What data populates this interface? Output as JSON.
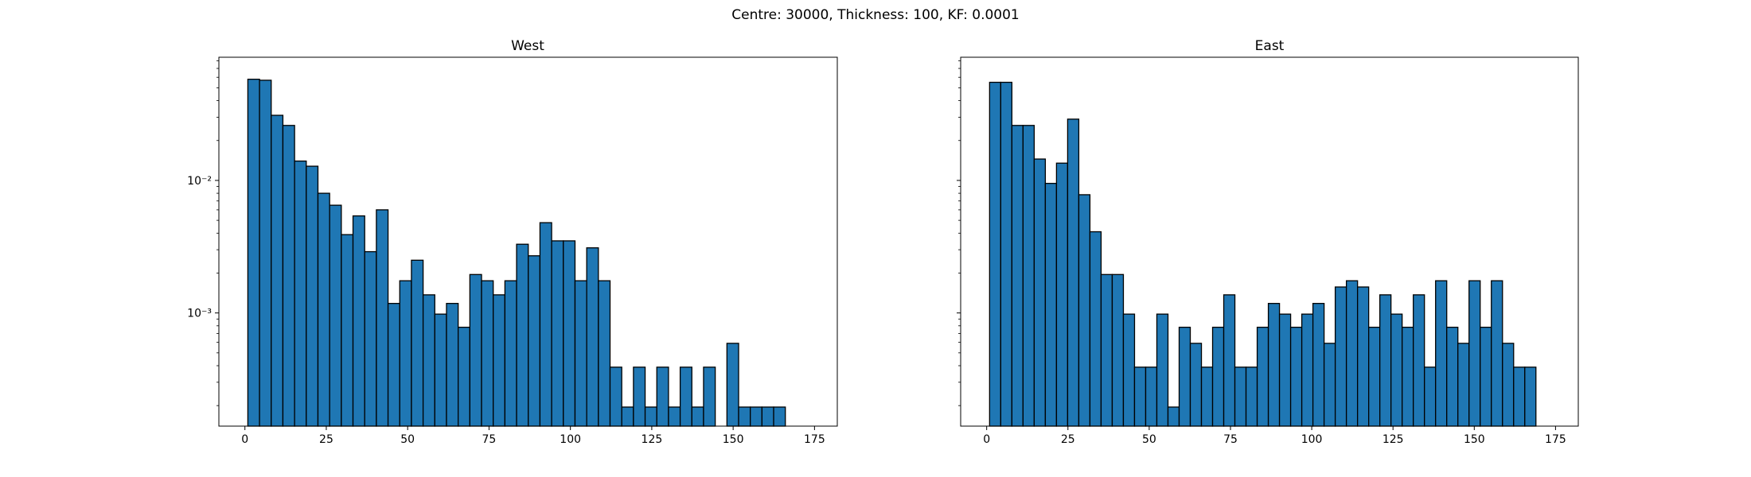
{
  "figure": {
    "suptitle": "Centre: 30000, Thickness: 100, KF: 0.0001"
  },
  "colors": {
    "bar_fill": "#1f77b4",
    "bar_edge": "#000000"
  },
  "chart_data": [
    {
      "type": "bar",
      "title": "West",
      "xlabel": "",
      "ylabel": "",
      "yscale": "log",
      "xlim": [
        -8,
        182
      ],
      "ylim": [
        0.00014,
        0.085
      ],
      "xticks": [
        0,
        25,
        50,
        75,
        100,
        125,
        150,
        175
      ],
      "yticks": [
        0.001,
        0.01
      ],
      "ytick_labels": [
        "10⁻³",
        "10⁻²"
      ],
      "bin_start": 0.9,
      "bin_width": 3.59,
      "values": [
        0.058,
        0.057,
        0.031,
        0.026,
        0.014,
        0.0128,
        0.008,
        0.0065,
        0.0039,
        0.0054,
        0.0029,
        0.006,
        0.00118,
        0.00175,
        0.0025,
        0.00137,
        0.00098,
        0.00118,
        0.00078,
        0.00195,
        0.00175,
        0.00137,
        0.00175,
        0.0033,
        0.0027,
        0.0048,
        0.0035,
        0.0035,
        0.00175,
        0.0031,
        0.00175,
        0.00039,
        0.000195,
        0.00039,
        0.000195,
        0.00039,
        0.000195,
        0.00039,
        0.000195,
        0.00039,
        0,
        0.00059,
        0.000195,
        0.000195,
        0.000195,
        0.000195
      ]
    },
    {
      "type": "bar",
      "title": "East",
      "xlabel": "",
      "ylabel": "",
      "yscale": "log",
      "xlim": [
        -8,
        182
      ],
      "ylim": [
        0.00014,
        0.085
      ],
      "xticks": [
        0,
        25,
        50,
        75,
        100,
        125,
        150,
        175
      ],
      "yticks": [
        0.001,
        0.01
      ],
      "ytick_labels": [
        "",
        ""
      ],
      "bin_start": 0.9,
      "bin_width": 3.43,
      "values": [
        0.055,
        0.055,
        0.026,
        0.026,
        0.0145,
        0.0095,
        0.0135,
        0.029,
        0.0078,
        0.0041,
        0.00195,
        0.00195,
        0.00098,
        0.00039,
        0.00039,
        0.00098,
        0.000195,
        0.00078,
        0.00059,
        0.00039,
        0.00078,
        0.00137,
        0.00039,
        0.00039,
        0.00078,
        0.00118,
        0.00098,
        0.00078,
        0.00098,
        0.00118,
        0.00059,
        0.00157,
        0.00175,
        0.00157,
        0.00078,
        0.00137,
        0.00098,
        0.00078,
        0.00137,
        0.00039,
        0.00175,
        0.00078,
        0.00059,
        0.00175,
        0.00078,
        0.00175,
        0.00059,
        0.00039,
        0.00039
      ]
    }
  ]
}
